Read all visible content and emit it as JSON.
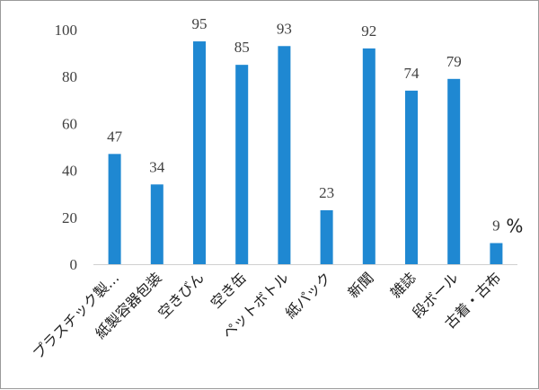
{
  "chart_data": {
    "type": "bar",
    "categories": [
      "プラスチック製…",
      "紙製容器包装",
      "空きびん",
      "空き缶",
      "ペットボトル",
      "紙パック",
      "新聞",
      "雑誌",
      "段ボール",
      "古着・古布"
    ],
    "values": [
      47,
      34,
      95,
      85,
      93,
      23,
      92,
      74,
      79,
      9
    ],
    "title": "",
    "xlabel": "",
    "ylabel": "",
    "unit": "%",
    "ylim": [
      0,
      100
    ],
    "yticks": [
      0,
      20,
      40,
      60,
      80,
      100
    ],
    "grid": false,
    "legend": "none",
    "bar_color": "#1f88d2"
  }
}
